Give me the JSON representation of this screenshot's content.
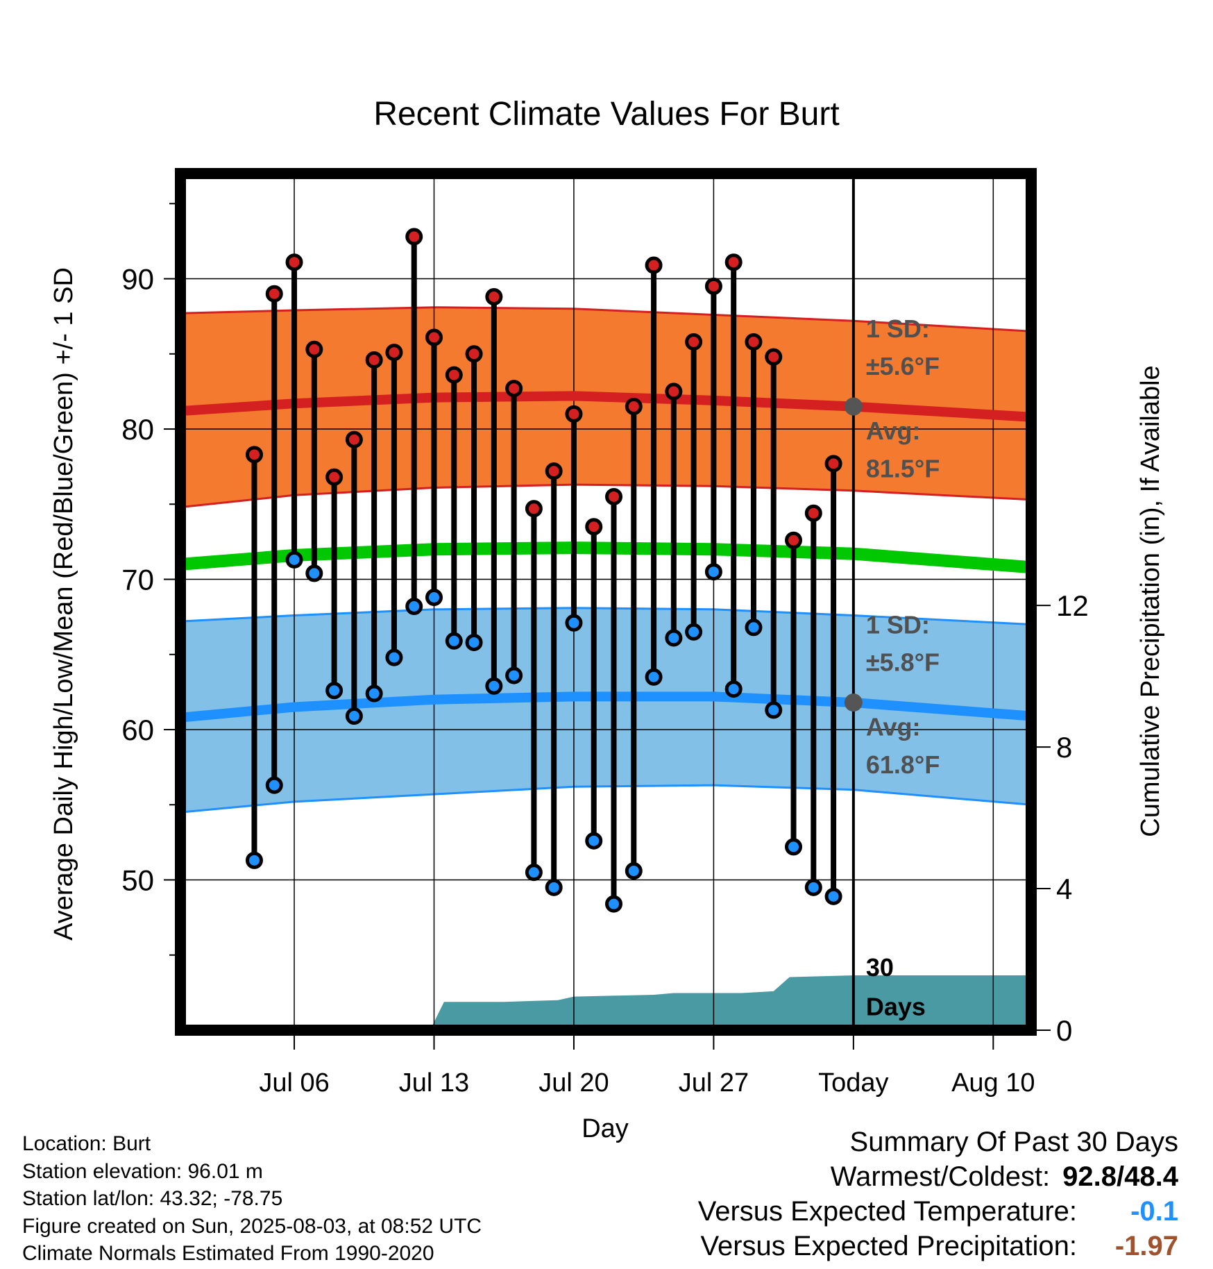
{
  "chart_data": {
    "type": "line",
    "title": "Recent Climate Values For Burt",
    "xlabel": "Day",
    "ylabel_left": "Average Daily High/Low/Mean (Red/Blue/Green) +/- 1 SD",
    "ylabel_right": "Cumulative Precipitation (in), If Available",
    "ylim": [
      40,
      97
    ],
    "xlim": [
      0.3,
      42.9
    ],
    "left_ticks": [
      50,
      60,
      70,
      80,
      90
    ],
    "right_ylim": [
      0,
      24.2
    ],
    "right_ticks": [
      0,
      4,
      8,
      12
    ],
    "x_ticks": [
      {
        "day": 6,
        "label": "Jul 06"
      },
      {
        "day": 13,
        "label": "Jul 13"
      },
      {
        "day": 20,
        "label": "Jul 20"
      },
      {
        "day": 27,
        "label": "Jul 27"
      },
      {
        "day": 34,
        "label": "Today"
      },
      {
        "day": 41,
        "label": "Aug 10"
      }
    ],
    "today_day": 34,
    "grid": true,
    "days": [
      4,
      5,
      6,
      7,
      8,
      9,
      10,
      11,
      12,
      13,
      14,
      15,
      16,
      17,
      18,
      19,
      20,
      21,
      22,
      23,
      24,
      25,
      26,
      27,
      28,
      29,
      30,
      31,
      32,
      33
    ],
    "highs": [
      78.3,
      89.0,
      91.1,
      85.3,
      76.8,
      79.3,
      84.6,
      85.1,
      92.8,
      86.1,
      83.6,
      85.0,
      88.8,
      82.7,
      74.7,
      77.2,
      81.0,
      73.5,
      75.5,
      81.5,
      90.9,
      82.5,
      85.8,
      89.5,
      91.1,
      85.8,
      84.8,
      72.6,
      74.4,
      77.7
    ],
    "lows": [
      51.3,
      56.3,
      71.3,
      70.4,
      62.6,
      60.9,
      62.4,
      64.8,
      68.2,
      68.8,
      65.9,
      65.8,
      62.9,
      63.6,
      50.5,
      49.5,
      67.1,
      52.6,
      48.4,
      50.6,
      63.5,
      66.1,
      66.5,
      70.5,
      62.7,
      66.8,
      61.3,
      52.2,
      49.5,
      48.9
    ],
    "series": [
      {
        "name": "Normal High",
        "color": "#d42020",
        "band_color": "#f47a30",
        "avg": [
          [
            0.3,
            81.2
          ],
          [
            6,
            81.7
          ],
          [
            13,
            82.1
          ],
          [
            20,
            82.2
          ],
          [
            27,
            81.9
          ],
          [
            34,
            81.5
          ],
          [
            42.9,
            80.8
          ]
        ],
        "upper": [
          [
            0.3,
            87.7
          ],
          [
            6,
            87.9
          ],
          [
            13,
            88.1
          ],
          [
            20,
            88.0
          ],
          [
            27,
            87.6
          ],
          [
            34,
            87.2
          ],
          [
            42.9,
            86.5
          ]
        ],
        "lower": [
          [
            0.3,
            74.8
          ],
          [
            6,
            75.6
          ],
          [
            13,
            76.1
          ],
          [
            20,
            76.3
          ],
          [
            27,
            76.2
          ],
          [
            34,
            75.9
          ],
          [
            42.9,
            75.3
          ]
        ]
      },
      {
        "name": "Normal Mean",
        "color": "#00c800",
        "avg": [
          [
            0.3,
            71.0
          ],
          [
            6,
            71.6
          ],
          [
            13,
            72.0
          ],
          [
            20,
            72.1
          ],
          [
            27,
            72.0
          ],
          [
            34,
            71.7
          ],
          [
            42.9,
            70.8
          ]
        ]
      },
      {
        "name": "Normal Low",
        "color": "#1e90ff",
        "band_color": "#82c0e8",
        "avg": [
          [
            0.3,
            60.8
          ],
          [
            6,
            61.5
          ],
          [
            13,
            62.0
          ],
          [
            20,
            62.2
          ],
          [
            27,
            62.2
          ],
          [
            34,
            61.8
          ],
          [
            42.9,
            60.9
          ]
        ],
        "upper": [
          [
            0.3,
            67.2
          ],
          [
            6,
            67.6
          ],
          [
            13,
            68.0
          ],
          [
            20,
            68.1
          ],
          [
            27,
            68.0
          ],
          [
            34,
            67.6
          ],
          [
            42.9,
            67.0
          ]
        ],
        "lower": [
          [
            0.3,
            54.5
          ],
          [
            6,
            55.2
          ],
          [
            13,
            55.7
          ],
          [
            20,
            56.2
          ],
          [
            27,
            56.3
          ],
          [
            34,
            56.0
          ],
          [
            42.9,
            55.0
          ]
        ]
      }
    ],
    "precipitation": {
      "color": "#4a9aa4",
      "points": [
        [
          0.3,
          0
        ],
        [
          9.3,
          0
        ],
        [
          10.0,
          0
        ],
        [
          12.8,
          0
        ],
        [
          13.5,
          0.8
        ],
        [
          16.5,
          0.8
        ],
        [
          19.2,
          0.85
        ],
        [
          20.0,
          0.95
        ],
        [
          24.0,
          1.0
        ],
        [
          25.0,
          1.05
        ],
        [
          28.4,
          1.05
        ],
        [
          30.0,
          1.1
        ],
        [
          30.8,
          1.5
        ],
        [
          34,
          1.55
        ],
        [
          42.9,
          1.55
        ]
      ]
    },
    "annotations": {
      "high_sd": [
        "1 SD:",
        "±5.6°F"
      ],
      "high_avg": [
        "Avg:",
        "81.5°F"
      ],
      "low_sd": [
        "1 SD:",
        "±5.8°F"
      ],
      "low_avg": [
        "Avg:",
        "61.8°F"
      ],
      "days_label": [
        "30",
        "Days"
      ]
    },
    "marker_colors": {
      "high": "#d42020",
      "low": "#1e90ff",
      "today": "#555555"
    }
  },
  "footer": {
    "location": "Location: Burt",
    "elevation": "Station elevation: 96.01 m",
    "latlon": "Station lat/lon: 43.32; -78.75",
    "created": "Figure created on Sun, 2025-08-03, at 08:52 UTC",
    "normals": "Climate Normals Estimated From 1990-2020"
  },
  "summary": {
    "title": "Summary Of Past 30 Days",
    "warmest_label": "Warmest/Coldest:",
    "warmest_value": "92.8/48.4",
    "temp_label": "Versus Expected Temperature:",
    "temp_value": "-0.1",
    "temp_color": "#1e90ff",
    "precip_label": "Versus Expected Precipitation:",
    "precip_value": "-1.97",
    "precip_color": "#a0522d"
  }
}
